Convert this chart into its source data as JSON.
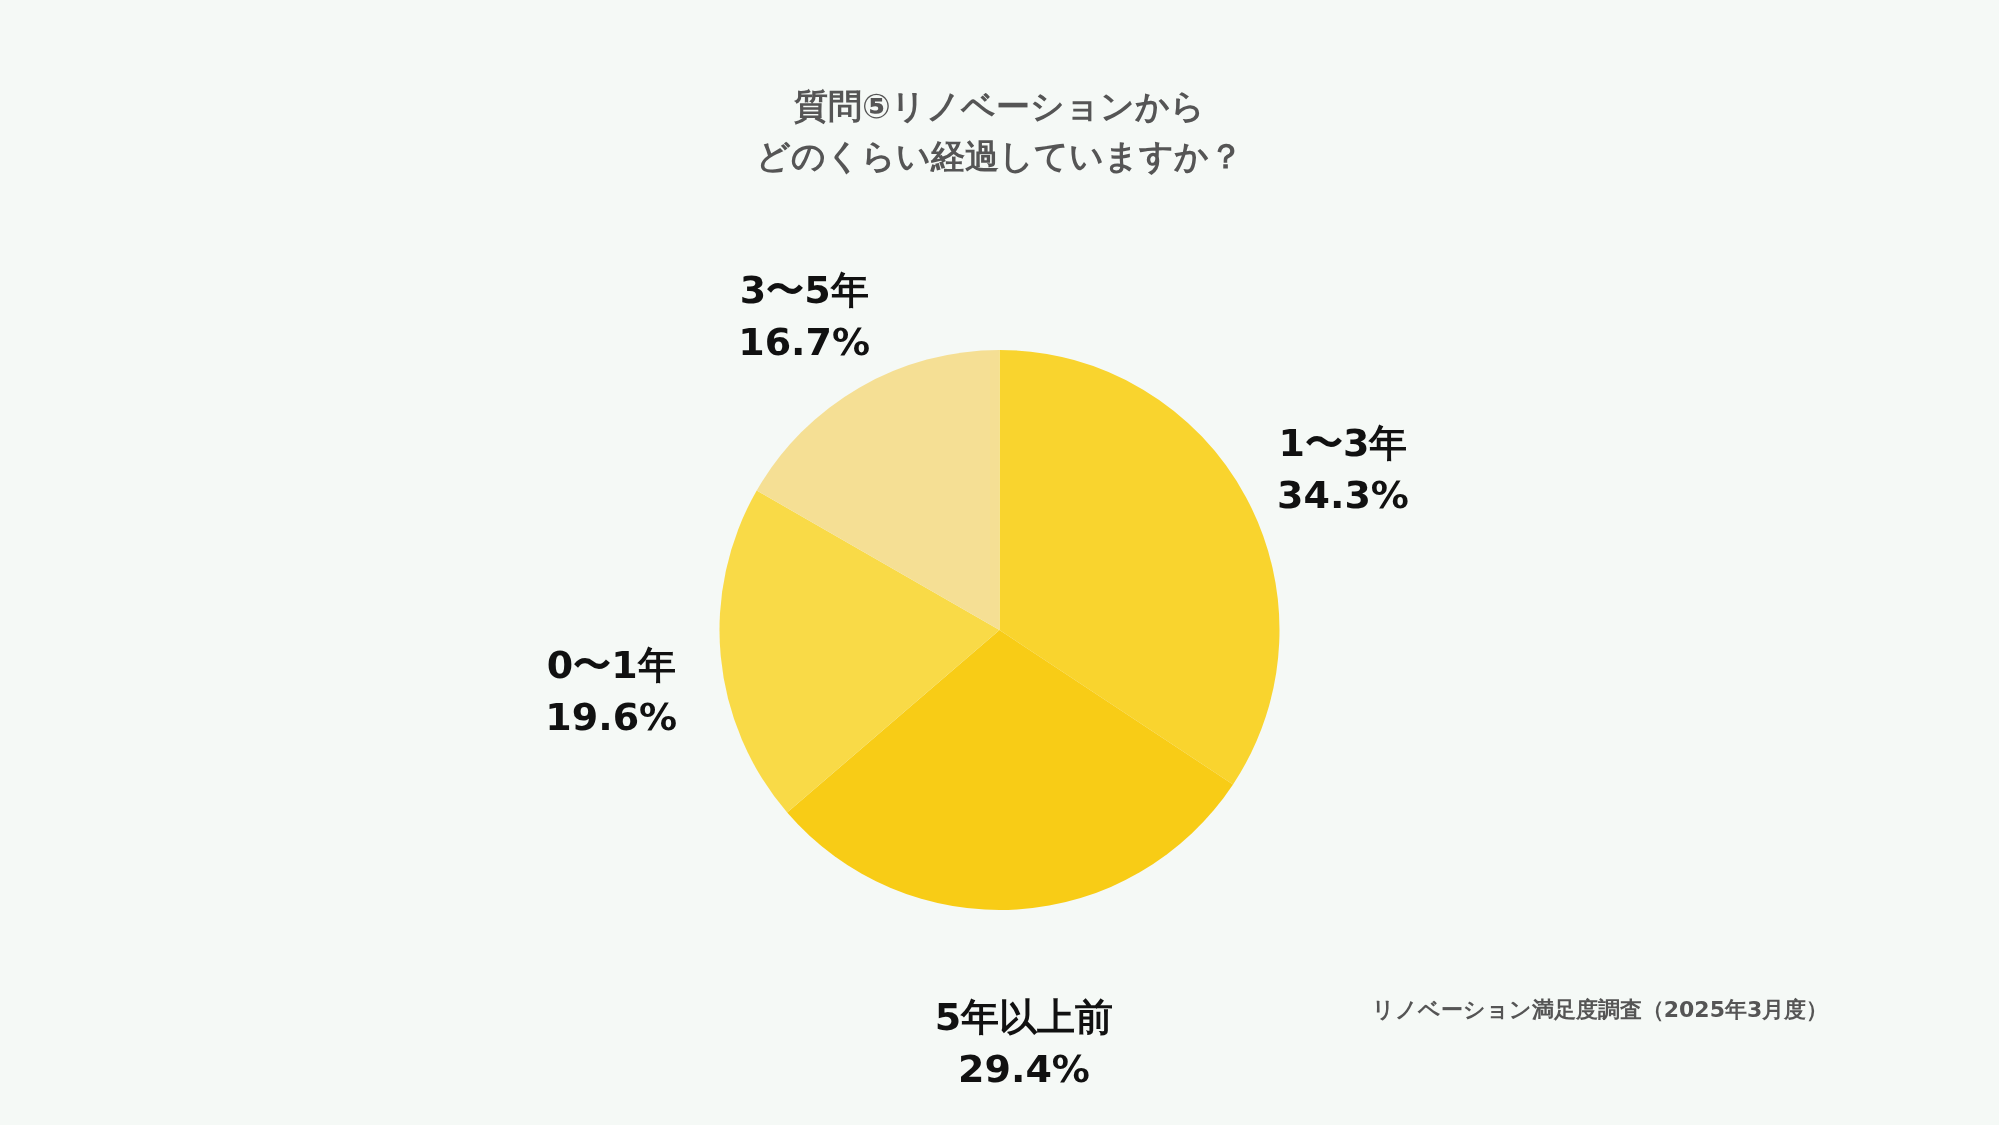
{
  "chart_data": {
    "type": "pie",
    "title": "質問⑤リノベーションからどのくらい経過していますか？",
    "categories": [
      "1〜3年",
      "5年以上前",
      "0〜1年",
      "3〜5年"
    ],
    "values": [
      34.3,
      29.4,
      19.6,
      16.7
    ],
    "value_labels": [
      "34.3%",
      "29.4%",
      "19.6%",
      "16.7%"
    ],
    "colors": [
      "#f9d42e",
      "#f8cc16",
      "#f9da47",
      "#f5df94"
    ],
    "annotations": [
      "リノベーション満足度調査（2025年3月度）"
    ],
    "legend": false
  }
}
